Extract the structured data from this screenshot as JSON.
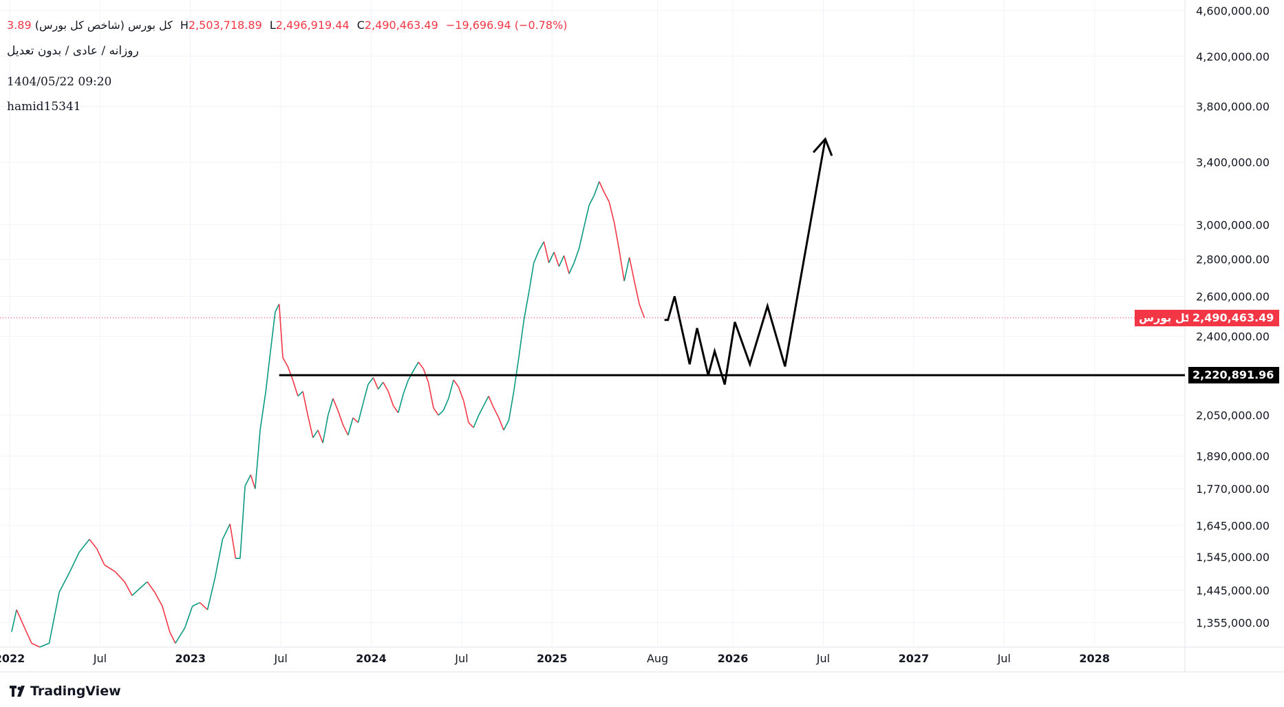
{
  "header": {
    "symbol_name": "کل بورس (شاخص کل بورس)",
    "ohlc": {
      "open_partial": "3.89",
      "high_key": "H",
      "high": "2,503,718.89",
      "low_key": "L",
      "low": "2,496,919.44",
      "close_key": "C",
      "close": "2,490,463.49",
      "change": "−19,696.94 (−0.78%)"
    },
    "interval": "روزانه / عادی / بدون تعدیل",
    "datetime": "1404/05/22 09:20",
    "author": "hamid15341"
  },
  "price_tag": {
    "name": "کل بورس",
    "value": "2,490,463.49",
    "color": "#f23645"
  },
  "level_tag": {
    "value": "2,220,891.96",
    "color": "#000000"
  },
  "branding": {
    "logo_text": "TradingView"
  },
  "chart_data": {
    "type": "line",
    "title": "کل بورس (شاخص کل بورس)",
    "y_scale": "log",
    "y_ticks": [
      "4,600,000.00",
      "4,200,000.00",
      "3,800,000.00",
      "3,400,000.00",
      "3,000,000.00",
      "2,800,000.00",
      "2,600,000.00",
      "2,400,000.00",
      "2,050,000.00",
      "1,890,000.00",
      "1,770,000.00",
      "1,645,000.00",
      "1,545,000.00",
      "1,445,000.00",
      "1,355,000.00"
    ],
    "x_ticks": [
      {
        "label": "2022",
        "date": "2022-01",
        "bold": true
      },
      {
        "label": "Jul",
        "date": "2022-07",
        "bold": false
      },
      {
        "label": "2023",
        "date": "2023-01",
        "bold": true
      },
      {
        "label": "Jul",
        "date": "2023-07",
        "bold": false
      },
      {
        "label": "2024",
        "date": "2024-01",
        "bold": true
      },
      {
        "label": "Jul",
        "date": "2024-07",
        "bold": false
      },
      {
        "label": "2025",
        "date": "2025-01",
        "bold": true
      },
      {
        "label": "Aug",
        "date": "2025-08",
        "bold": false
      },
      {
        "label": "2026",
        "date": "2026-01",
        "bold": true
      },
      {
        "label": "Jul",
        "date": "2026-07",
        "bold": false
      },
      {
        "label": "2027",
        "date": "2027-01",
        "bold": true
      },
      {
        "label": "Jul",
        "date": "2027-07",
        "bold": false
      },
      {
        "label": "2028",
        "date": "2028-01",
        "bold": true
      }
    ],
    "x_range": [
      "2022-01",
      "2028-07"
    ],
    "y_range": [
      1290000,
      4700000
    ],
    "series": [
      {
        "name": "کل بورس",
        "color_up": "#089981",
        "color_down": "#f23645",
        "points": [
          [
            "2022-01-05",
            1330000
          ],
          [
            "2022-01-15",
            1390000
          ],
          [
            "2022-02-01",
            1340000
          ],
          [
            "2022-02-15",
            1300000
          ],
          [
            "2022-03-01",
            1290000
          ],
          [
            "2022-03-20",
            1300000
          ],
          [
            "2022-04-10",
            1440000
          ],
          [
            "2022-05-01",
            1500000
          ],
          [
            "2022-05-20",
            1560000
          ],
          [
            "2022-06-10",
            1600000
          ],
          [
            "2022-06-25",
            1570000
          ],
          [
            "2022-07-10",
            1520000
          ],
          [
            "2022-08-01",
            1500000
          ],
          [
            "2022-08-20",
            1470000
          ],
          [
            "2022-09-05",
            1430000
          ],
          [
            "2022-09-20",
            1450000
          ],
          [
            "2022-10-05",
            1470000
          ],
          [
            "2022-10-20",
            1440000
          ],
          [
            "2022-11-05",
            1400000
          ],
          [
            "2022-11-20",
            1330000
          ],
          [
            "2022-12-01",
            1300000
          ],
          [
            "2022-12-20",
            1340000
          ],
          [
            "2023-01-05",
            1400000
          ],
          [
            "2023-01-20",
            1410000
          ],
          [
            "2023-02-05",
            1390000
          ],
          [
            "2023-02-20",
            1480000
          ],
          [
            "2023-03-05",
            1600000
          ],
          [
            "2023-03-20",
            1650000
          ],
          [
            "2023-04-01",
            1540000
          ],
          [
            "2023-04-10",
            1540000
          ],
          [
            "2023-04-20",
            1780000
          ],
          [
            "2023-05-01",
            1820000
          ],
          [
            "2023-05-10",
            1770000
          ],
          [
            "2023-05-20",
            1990000
          ],
          [
            "2023-06-01",
            2150000
          ],
          [
            "2023-06-10",
            2320000
          ],
          [
            "2023-06-20",
            2520000
          ],
          [
            "2023-06-28",
            2560000
          ],
          [
            "2023-07-05",
            2300000
          ],
          [
            "2023-07-15",
            2260000
          ],
          [
            "2023-07-25",
            2200000
          ],
          [
            "2023-08-05",
            2130000
          ],
          [
            "2023-08-15",
            2150000
          ],
          [
            "2023-08-25",
            2050000
          ],
          [
            "2023-09-05",
            1960000
          ],
          [
            "2023-09-15",
            1990000
          ],
          [
            "2023-09-25",
            1940000
          ],
          [
            "2023-10-05",
            2050000
          ],
          [
            "2023-10-15",
            2120000
          ],
          [
            "2023-10-25",
            2070000
          ],
          [
            "2023-11-05",
            2010000
          ],
          [
            "2023-11-15",
            1970000
          ],
          [
            "2023-11-25",
            2040000
          ],
          [
            "2023-12-05",
            2020000
          ],
          [
            "2023-12-15",
            2100000
          ],
          [
            "2023-12-25",
            2180000
          ],
          [
            "2024-01-05",
            2210000
          ],
          [
            "2024-01-15",
            2160000
          ],
          [
            "2024-01-25",
            2190000
          ],
          [
            "2024-02-05",
            2150000
          ],
          [
            "2024-02-15",
            2090000
          ],
          [
            "2024-02-25",
            2060000
          ],
          [
            "2024-03-05",
            2140000
          ],
          [
            "2024-03-15",
            2200000
          ],
          [
            "2024-03-25",
            2240000
          ],
          [
            "2024-04-05",
            2280000
          ],
          [
            "2024-04-15",
            2250000
          ],
          [
            "2024-04-25",
            2190000
          ],
          [
            "2024-05-05",
            2080000
          ],
          [
            "2024-05-15",
            2050000
          ],
          [
            "2024-05-25",
            2070000
          ],
          [
            "2024-06-05",
            2120000
          ],
          [
            "2024-06-15",
            2200000
          ],
          [
            "2024-06-25",
            2170000
          ],
          [
            "2024-07-05",
            2110000
          ],
          [
            "2024-07-15",
            2020000
          ],
          [
            "2024-07-25",
            2000000
          ],
          [
            "2024-08-05",
            2050000
          ],
          [
            "2024-08-15",
            2090000
          ],
          [
            "2024-08-25",
            2130000
          ],
          [
            "2024-09-05",
            2080000
          ],
          [
            "2024-09-15",
            2040000
          ],
          [
            "2024-09-25",
            1990000
          ],
          [
            "2024-10-05",
            2030000
          ],
          [
            "2024-10-15",
            2150000
          ],
          [
            "2024-10-25",
            2300000
          ],
          [
            "2024-11-05",
            2480000
          ],
          [
            "2024-11-15",
            2620000
          ],
          [
            "2024-11-25",
            2780000
          ],
          [
            "2024-12-05",
            2850000
          ],
          [
            "2024-12-15",
            2900000
          ],
          [
            "2024-12-25",
            2780000
          ],
          [
            "2025-01-05",
            2840000
          ],
          [
            "2025-01-15",
            2760000
          ],
          [
            "2025-01-25",
            2820000
          ],
          [
            "2025-02-05",
            2720000
          ],
          [
            "2025-02-15",
            2780000
          ],
          [
            "2025-02-25",
            2860000
          ],
          [
            "2025-03-05",
            2990000
          ],
          [
            "2025-03-15",
            3120000
          ],
          [
            "2025-03-25",
            3180000
          ],
          [
            "2025-04-05",
            3270000
          ],
          [
            "2025-04-15",
            3200000
          ],
          [
            "2025-04-25",
            3140000
          ],
          [
            "2025-05-05",
            3010000
          ],
          [
            "2025-05-15",
            2850000
          ],
          [
            "2025-05-25",
            2680000
          ],
          [
            "2025-06-05",
            2810000
          ],
          [
            "2025-06-15",
            2680000
          ],
          [
            "2025-06-25",
            2560000
          ],
          [
            "2025-07-05",
            2490000
          ]
        ]
      },
      {
        "name": "projection",
        "color": "#000000",
        "points": [
          [
            "2025-08-15",
            2480000
          ],
          [
            "2025-08-22",
            2480000
          ],
          [
            "2025-09-05",
            2600000
          ],
          [
            "2025-10-05",
            2270000
          ],
          [
            "2025-10-20",
            2440000
          ],
          [
            "2025-11-12",
            2220000
          ],
          [
            "2025-11-25",
            2330000
          ],
          [
            "2025-12-15",
            2180000
          ],
          [
            "2026-01-05",
            2470000
          ],
          [
            "2026-02-05",
            2270000
          ],
          [
            "2026-03-10",
            2550000
          ],
          [
            "2026-04-15",
            2260000
          ],
          [
            "2026-07-05",
            3560000
          ]
        ]
      }
    ],
    "horizontal_line": {
      "value": 2220891.96,
      "from": "2023-06-28"
    },
    "last_price": 2490463.49,
    "grid": true
  }
}
